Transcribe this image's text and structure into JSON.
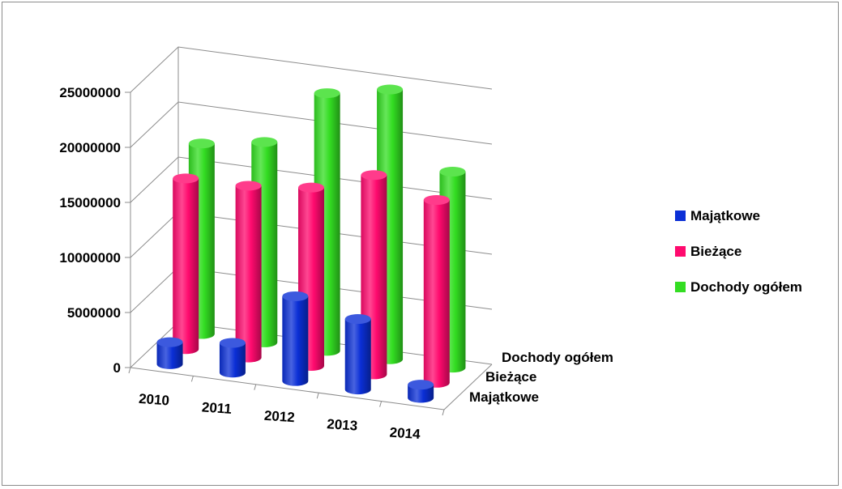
{
  "chart_data": {
    "type": "bar",
    "style": "3d-cylinder",
    "categories": [
      "2010",
      "2011",
      "2012",
      "2013",
      "2014"
    ],
    "series": [
      {
        "name": "Majątkowe",
        "color": "#0b2fd6",
        "values": [
          2000000,
          2700000,
          7700000,
          6400000,
          1200000
        ]
      },
      {
        "name": "Bieżące",
        "color": "#ff0a6e",
        "values": [
          15500000,
          15600000,
          16200000,
          18100000,
          16600000
        ]
      },
      {
        "name": "Dochody ogółem",
        "color": "#33dd22",
        "values": [
          17300000,
          18200000,
          23400000,
          24500000,
          17800000
        ]
      }
    ],
    "ylim": [
      0,
      25000000
    ],
    "yticks": [
      "0",
      "5000000",
      "10000000",
      "15000000",
      "20000000",
      "25000000"
    ],
    "depth_labels": [
      "Dochody ogółem",
      "Bieżące",
      "Majątkowe"
    ],
    "grid": true,
    "legend_position": "right"
  }
}
